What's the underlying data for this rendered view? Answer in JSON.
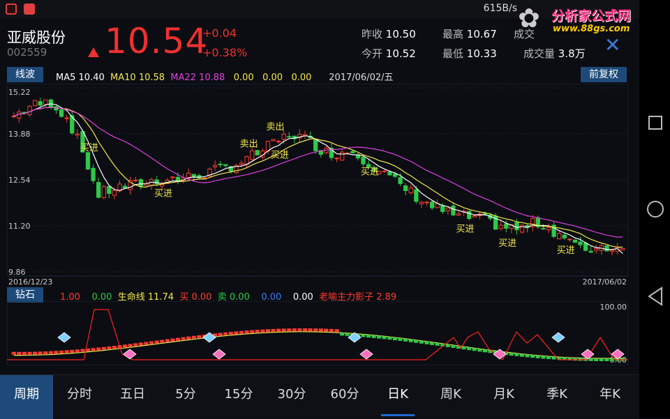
{
  "statusbar": {
    "net_speed": "615B/s"
  },
  "watermark": {
    "title": "分析家公式网",
    "url": "www.88gs.com"
  },
  "stock": {
    "name": "亚威股份",
    "code": "002559",
    "price": "10.54",
    "change": "+0.04",
    "change_pct": "+0.38%",
    "quotes": [
      {
        "label": "昨收",
        "value": "10.50"
      },
      {
        "label": "最高",
        "value": "10.67"
      },
      {
        "label": "成交",
        "value": ""
      },
      {
        "label": "今开",
        "value": "10.52"
      },
      {
        "label": "最低",
        "value": "10.33"
      },
      {
        "label": "成交量",
        "value": "3.8万"
      }
    ]
  },
  "main_chart": {
    "indicator_tab": "线波",
    "restore_button": "前复权",
    "legend": {
      "ma5_label": "MA5",
      "ma5_value": "10.40",
      "ma10_label": "MA10",
      "ma10_value": "10.58",
      "ma22_label": "MA22",
      "ma22_value": "10.88",
      "v1": "0.00",
      "v2": "0.00",
      "v3": "0.00",
      "date": "2017/06/02/五"
    },
    "y_ticks": [
      "15.22",
      "13.88",
      "12.54",
      "11.20",
      "9.86"
    ],
    "start_date": "2016/12/23",
    "end_date": "2017/06/02",
    "buy_label": "买进",
    "sell_label": "卖出",
    "colors": {
      "up": "#ff3b30",
      "down": "#2ec84a",
      "ma5": "#ffffff",
      "ma10": "#f5e94a",
      "ma22": "#e040e0",
      "signal": "#f5e94a"
    }
  },
  "sub_chart": {
    "indicator_tab": "钻石",
    "legend": {
      "v1": "1.00",
      "v2": "0.00",
      "life_label": "生命线",
      "life_value": "11.74",
      "buy_label": "买",
      "buy_value": "0.00",
      "sell_label": "卖",
      "sell_value": "0.00",
      "v3": "0.00",
      "v4": "0.00",
      "shadow_label": "老喻主力影子",
      "shadow_value": "2.89"
    },
    "y_ticks": [
      "100.00",
      "0.00"
    ]
  },
  "chart_data": {
    "type": "candlestick",
    "price_range": [
      9.86,
      15.22
    ],
    "x_start": "2016/12/23",
    "x_end": "2017/06/02",
    "last_close": 10.54,
    "ma_last": {
      "MA5": 10.4,
      "MA10": 10.58,
      "MA22": 10.88
    }
  },
  "bottom_tabs": [
    "周期",
    "分时",
    "五日",
    "5分",
    "15分",
    "30分",
    "60分",
    "日K",
    "周K",
    "月K",
    "季K",
    "年K"
  ]
}
